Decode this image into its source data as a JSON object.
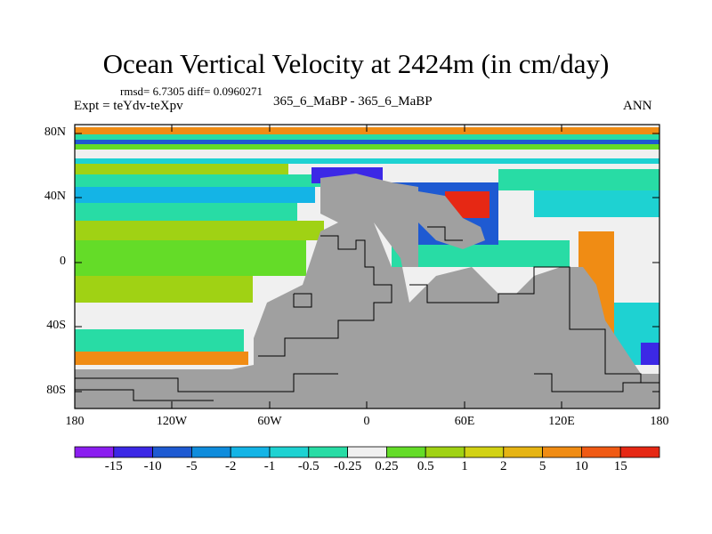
{
  "title": "Ocean Vertical Velocity at 2424m (in cm/day)",
  "stats": "rmsd= 6.7305 diff= 0.0960271",
  "expt": "Expt = teYdv-teXpv",
  "case": "365_6_MaBP - 365_6_MaBP",
  "season": "ANN",
  "lat_labels": [
    "80N",
    "40N",
    "0",
    "40S",
    "80S"
  ],
  "lon_labels": [
    "180",
    "120W",
    "60W",
    "0",
    "60E",
    "120E",
    "180"
  ],
  "colorbar": {
    "labels": [
      "-15",
      "-10",
      "-5",
      "-2",
      "-1",
      "-0.5",
      "-0.25",
      "0.25",
      "0.5",
      "1",
      "2",
      "5",
      "10",
      "15"
    ],
    "colors": [
      "#8b1ef0",
      "#3c28e6",
      "#1e5ad2",
      "#0f8cdc",
      "#14b4e6",
      "#1ed2d2",
      "#28dca5",
      "#f0f0f0",
      "#64dc28",
      "#a0d214",
      "#d2d214",
      "#e6b414",
      "#f08c14",
      "#f05a14",
      "#e62814"
    ]
  },
  "colors": {
    "land": "#a0a0a0",
    "frame": "#000000"
  }
}
